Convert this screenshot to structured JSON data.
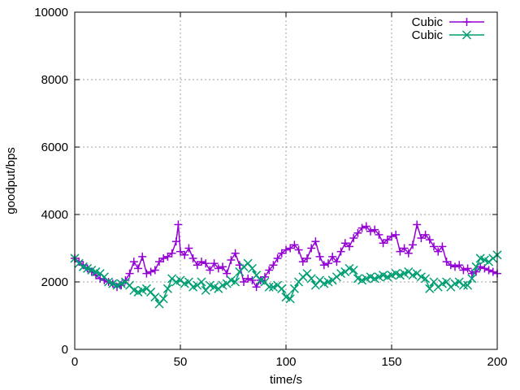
{
  "chart_data": {
    "type": "line",
    "xlabel": "time/s",
    "ylabel": "goodput/bps",
    "xlim": [
      0,
      200
    ],
    "ylim": [
      0,
      10000
    ],
    "x_ticks": [
      0,
      50,
      100,
      150,
      200
    ],
    "y_ticks": [
      0,
      2000,
      4000,
      6000,
      8000,
      10000
    ],
    "grid": true,
    "legend_position": "top-right",
    "series": [
      {
        "name": "Cubic",
        "color": "#9400d3",
        "marker": "plus",
        "x": [
          0,
          2,
          4,
          6,
          8,
          10,
          12,
          14,
          16,
          18,
          20,
          22,
          24,
          26,
          28,
          30,
          32,
          34,
          36,
          38,
          40,
          42,
          44,
          46,
          48,
          49,
          50,
          52,
          54,
          56,
          58,
          60,
          62,
          64,
          66,
          68,
          70,
          72,
          74,
          76,
          78,
          80,
          82,
          84,
          86,
          88,
          90,
          92,
          94,
          96,
          98,
          100,
          102,
          104,
          106,
          108,
          110,
          112,
          114,
          116,
          118,
          120,
          122,
          124,
          126,
          128,
          130,
          132,
          134,
          136,
          138,
          140,
          142,
          144,
          146,
          148,
          150,
          152,
          154,
          156,
          158,
          160,
          162,
          164,
          166,
          168,
          170,
          172,
          174,
          176,
          178,
          180,
          182,
          184,
          186,
          188,
          190,
          192,
          194,
          196,
          198,
          200
        ],
        "y": [
          2700,
          2600,
          2500,
          2400,
          2300,
          2200,
          2100,
          2050,
          2000,
          1950,
          1850,
          1900,
          2050,
          2250,
          2600,
          2400,
          2750,
          2250,
          2300,
          2350,
          2600,
          2700,
          2750,
          2850,
          3200,
          3700,
          2900,
          2800,
          3000,
          2700,
          2500,
          2600,
          2550,
          2350,
          2550,
          2400,
          2450,
          2250,
          2650,
          2850,
          2500,
          2000,
          2100,
          2050,
          1850,
          2050,
          2150,
          2350,
          2500,
          2700,
          2850,
          2950,
          3000,
          3100,
          2950,
          2600,
          2700,
          3000,
          3200,
          2750,
          2500,
          2550,
          2750,
          2600,
          2900,
          3150,
          3050,
          3300,
          3450,
          3600,
          3650,
          3500,
          3550,
          3400,
          3150,
          3250,
          3350,
          3400,
          2900,
          3000,
          2850,
          3100,
          3700,
          3300,
          3400,
          3250,
          3050,
          2900,
          3050,
          2600,
          2500,
          2450,
          2500,
          2350,
          2400,
          2250,
          2300,
          2450,
          2400,
          2350,
          2300,
          2250
        ]
      },
      {
        "name": "Cubic",
        "color": "#009e73",
        "marker": "cross",
        "x": [
          0,
          2,
          4,
          6,
          8,
          10,
          12,
          14,
          16,
          18,
          20,
          22,
          24,
          26,
          28,
          30,
          32,
          34,
          36,
          38,
          40,
          42,
          44,
          46,
          48,
          50,
          52,
          54,
          56,
          58,
          60,
          62,
          64,
          66,
          68,
          70,
          72,
          74,
          76,
          78,
          80,
          82,
          84,
          86,
          88,
          90,
          92,
          94,
          96,
          98,
          100,
          102,
          104,
          106,
          108,
          110,
          112,
          114,
          116,
          118,
          120,
          122,
          124,
          126,
          128,
          130,
          132,
          134,
          136,
          138,
          140,
          142,
          144,
          146,
          148,
          150,
          152,
          154,
          156,
          158,
          160,
          162,
          164,
          166,
          168,
          170,
          172,
          174,
          176,
          178,
          180,
          182,
          184,
          186,
          188,
          190,
          192,
          194,
          196,
          198,
          200
        ],
        "y": [
          2700,
          2550,
          2450,
          2400,
          2350,
          2300,
          2250,
          2150,
          2000,
          1950,
          1900,
          1950,
          2000,
          1900,
          1750,
          1700,
          1750,
          1800,
          1700,
          1550,
          1350,
          1500,
          1800,
          2100,
          2000,
          2050,
          1950,
          2000,
          1850,
          1900,
          2000,
          1750,
          1900,
          1850,
          1800,
          1900,
          1950,
          2050,
          2000,
          2300,
          2450,
          2550,
          2400,
          2200,
          2050,
          2000,
          1850,
          1850,
          1900,
          1800,
          1550,
          1500,
          1800,
          2000,
          2150,
          2250,
          2100,
          1900,
          2050,
          1950,
          2000,
          2050,
          2150,
          2250,
          2300,
          2400,
          2350,
          2100,
          2050,
          2100,
          2150,
          2100,
          2150,
          2200,
          2150,
          2200,
          2250,
          2200,
          2250,
          2300,
          2200,
          2250,
          2150,
          2100,
          1800,
          2000,
          1850,
          1950,
          2000,
          1850,
          1950,
          2000,
          1900,
          1900,
          2100,
          2450,
          2700,
          2650,
          2600,
          2700,
          2800
        ]
      }
    ]
  }
}
